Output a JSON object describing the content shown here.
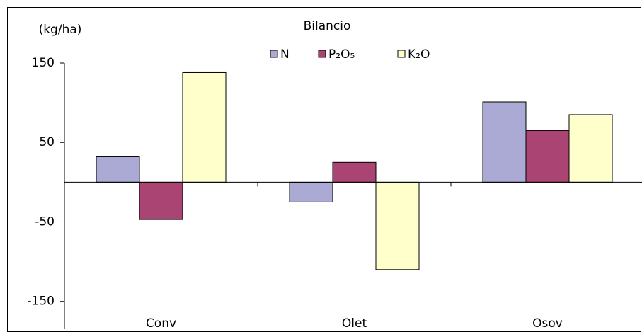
{
  "chart_data": {
    "type": "bar",
    "title": "Bilancio",
    "y_label": "(kg/ha)",
    "categories": [
      "Conv",
      "Olet",
      "Osov"
    ],
    "series": [
      {
        "name": "N",
        "color": "#aaaad4",
        "values": [
          32,
          -25,
          101
        ]
      },
      {
        "name": "P₂O₅",
        "color": "#aa4472",
        "values": [
          -47,
          25,
          65
        ]
      },
      {
        "name": "K₂O",
        "color": "#ffffcc",
        "values": [
          138,
          -110,
          85
        ]
      }
    ],
    "ylim": [
      -185,
      150
    ],
    "yticks": [
      -150,
      -50,
      50,
      150
    ],
    "grid": false
  }
}
